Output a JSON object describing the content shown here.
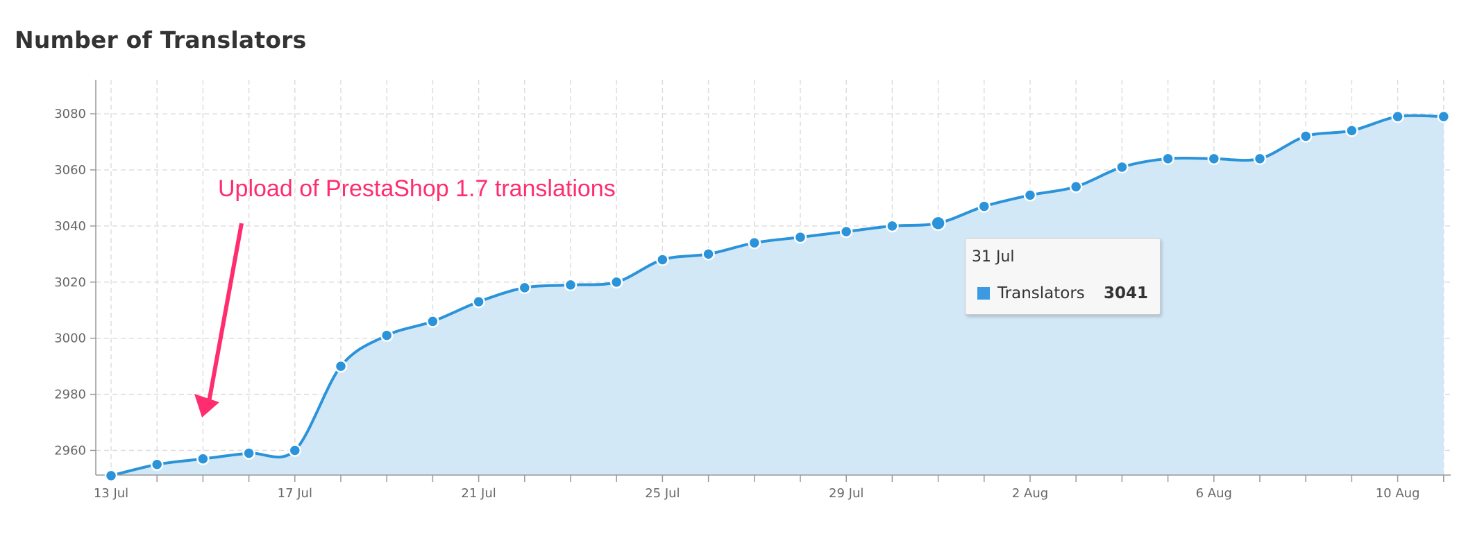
{
  "page": {
    "title": "Number of Translators"
  },
  "colors": {
    "line": "#2b93d9",
    "area": "#d3e8f7",
    "grid": "#dddddd",
    "annotation": "#ff2d6f",
    "tooltip_swatch": "#3b9ae1"
  },
  "annotation": {
    "text": "Upload of PrestaShop 1.7 translations"
  },
  "tooltip": {
    "date": "31 Jul",
    "series_label": "Translators",
    "value": "3041"
  },
  "chart_data": {
    "type": "area",
    "title": "Number of Translators",
    "xlabel": "",
    "ylabel": "",
    "ylim": [
      2950,
      3092
    ],
    "yticks": [
      2960,
      2980,
      3000,
      3020,
      3040,
      3060,
      3080
    ],
    "x": [
      "13 Jul",
      "14 Jul",
      "15 Jul",
      "16 Jul",
      "17 Jul",
      "18 Jul",
      "19 Jul",
      "20 Jul",
      "21 Jul",
      "22 Jul",
      "23 Jul",
      "24 Jul",
      "25 Jul",
      "26 Jul",
      "27 Jul",
      "28 Jul",
      "29 Jul",
      "30 Jul",
      "31 Jul",
      "1 Aug",
      "2 Aug",
      "3 Aug",
      "4 Aug",
      "5 Aug",
      "6 Aug",
      "7 Aug",
      "8 Aug",
      "9 Aug",
      "10 Aug",
      "11 Aug"
    ],
    "xtick_labels": [
      "13 Jul",
      "17 Jul",
      "21 Jul",
      "25 Jul",
      "29 Jul",
      "2 Aug",
      "6 Aug",
      "10 Aug"
    ],
    "series": [
      {
        "name": "Translators",
        "values": [
          2951,
          2955,
          2957,
          2959,
          2960,
          2990,
          3001,
          3006,
          3013,
          3018,
          3019,
          3020,
          3028,
          3030,
          3034,
          3036,
          3038,
          3040,
          3041,
          3047,
          3051,
          3054,
          3061,
          3064,
          3064,
          3064,
          3072,
          3074,
          3079,
          3079
        ]
      }
    ],
    "highlighted": "31 Jul",
    "grid": true,
    "legend": "none"
  }
}
